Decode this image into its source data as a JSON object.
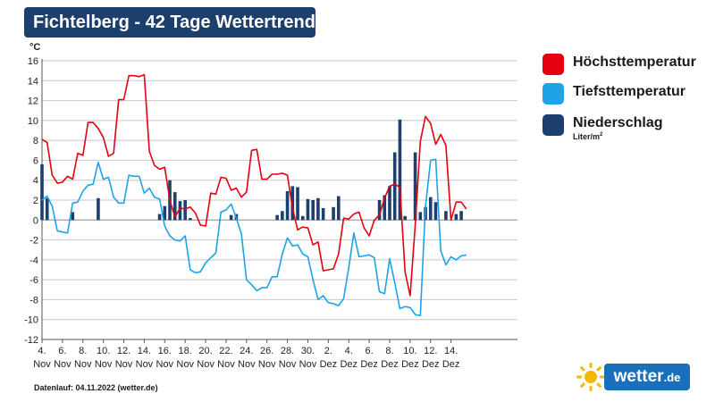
{
  "header": {
    "title": "Fichtelberg - 42 Tage Wettertrend",
    "unit": "°C"
  },
  "legend": {
    "items": [
      {
        "label": "Höchsttemperatur",
        "color": "#e3000f"
      },
      {
        "label": "Tiefsttemperatur",
        "color": "#1ea2e8"
      },
      {
        "label": "Niederschlag",
        "color": "#1d3f6e"
      }
    ],
    "unit_base": "Liter/m",
    "unit_exp": "2"
  },
  "footer": {
    "text": "Datenlauf: 04.11.2022 (wetter.de)"
  },
  "logo": {
    "name": "wetter",
    "suffix": ".de",
    "icon": "sun-icon"
  },
  "chart_data": {
    "type": "line",
    "title": "Fichtelberg - 42 Tage Wettertrend",
    "ylabel": "°C",
    "ylim": [
      -12,
      16
    ],
    "yticks": [
      -12,
      -10,
      -8,
      -6,
      -4,
      -2,
      0,
      2,
      4,
      6,
      8,
      10,
      12,
      14,
      16
    ],
    "grid": true,
    "legend_position": "right",
    "x_domain": [
      0,
      46.5
    ],
    "x_ticks": [
      {
        "x": 0,
        "day": "4.",
        "month": "Nov"
      },
      {
        "x": 2,
        "day": "6.",
        "month": "Nov"
      },
      {
        "x": 4,
        "day": "8.",
        "month": "Nov"
      },
      {
        "x": 6,
        "day": "10.",
        "month": "Nov"
      },
      {
        "x": 8,
        "day": "12.",
        "month": "Nov"
      },
      {
        "x": 10,
        "day": "14.",
        "month": "Nov"
      },
      {
        "x": 12,
        "day": "16.",
        "month": "Nov"
      },
      {
        "x": 14,
        "day": "18.",
        "month": "Nov"
      },
      {
        "x": 16,
        "day": "20.",
        "month": "Nov"
      },
      {
        "x": 18,
        "day": "22.",
        "month": "Nov"
      },
      {
        "x": 20,
        "day": "24.",
        "month": "Nov"
      },
      {
        "x": 22,
        "day": "26.",
        "month": "Nov"
      },
      {
        "x": 24,
        "day": "28.",
        "month": "Nov"
      },
      {
        "x": 26,
        "day": "30.",
        "month": "Nov"
      },
      {
        "x": 28,
        "day": "2.",
        "month": "Dez"
      },
      {
        "x": 30,
        "day": "4.",
        "month": "Dez"
      },
      {
        "x": 32,
        "day": "6.",
        "month": "Dez"
      },
      {
        "x": 34,
        "day": "8.",
        "month": "Dez"
      },
      {
        "x": 36,
        "day": "10.",
        "month": "Dez"
      },
      {
        "x": 38,
        "day": "12.",
        "month": "Dez"
      },
      {
        "x": 40,
        "day": "14.",
        "month": "Dez"
      }
    ],
    "series": [
      {
        "name": "Höchsttemperatur",
        "color": "#e3000f",
        "points": [
          [
            0,
            8.1
          ],
          [
            0.5,
            7.8
          ],
          [
            1,
            4.5
          ],
          [
            1.5,
            3.7
          ],
          [
            2,
            3.8
          ],
          [
            2.5,
            4.4
          ],
          [
            3,
            4.1
          ],
          [
            3.5,
            6.7
          ],
          [
            4,
            6.5
          ],
          [
            4.5,
            9.8
          ],
          [
            5,
            9.8
          ],
          [
            5.5,
            9.2
          ],
          [
            6,
            8.3
          ],
          [
            6.5,
            6.4
          ],
          [
            7,
            6.7
          ],
          [
            7.5,
            12.1
          ],
          [
            8,
            12.1
          ],
          [
            8.5,
            14.5
          ],
          [
            9,
            14.5
          ],
          [
            9.5,
            14.4
          ],
          [
            10,
            14.6
          ],
          [
            10.5,
            6.9
          ],
          [
            11,
            5.5
          ],
          [
            11.5,
            5.1
          ],
          [
            12,
            5.3
          ],
          [
            12.5,
            2.0
          ],
          [
            13,
            0.3
          ],
          [
            13.5,
            1.2
          ],
          [
            14,
            1.1
          ],
          [
            14.5,
            1.3
          ],
          [
            15,
            0.7
          ],
          [
            15.5,
            -0.5
          ],
          [
            16,
            -0.6
          ],
          [
            16.5,
            2.7
          ],
          [
            17,
            2.6
          ],
          [
            17.5,
            4.3
          ],
          [
            18,
            4.2
          ],
          [
            18.5,
            3.0
          ],
          [
            19,
            3.2
          ],
          [
            19.5,
            2.3
          ],
          [
            20,
            2.8
          ],
          [
            20.5,
            7.0
          ],
          [
            21,
            7.1
          ],
          [
            21.5,
            4.1
          ],
          [
            22,
            4.1
          ],
          [
            22.5,
            4.6
          ],
          [
            23,
            4.6
          ],
          [
            23.5,
            4.7
          ],
          [
            24,
            4.5
          ],
          [
            24.5,
            1.2
          ],
          [
            25,
            -1.0
          ],
          [
            25.5,
            -0.7
          ],
          [
            26,
            -0.8
          ],
          [
            26.5,
            -2.5
          ],
          [
            27,
            -2.2
          ],
          [
            27.5,
            -5.1
          ],
          [
            28,
            -5.0
          ],
          [
            28.5,
            -4.9
          ],
          [
            29,
            -3.4
          ],
          [
            29.5,
            0.2
          ],
          [
            30,
            0.1
          ],
          [
            30.5,
            0.6
          ],
          [
            31,
            0.8
          ],
          [
            31.5,
            -0.8
          ],
          [
            32,
            -1.6
          ],
          [
            32.5,
            0.0
          ],
          [
            33,
            0.5
          ],
          [
            33.5,
            2.2
          ],
          [
            34,
            3.4
          ],
          [
            34.5,
            3.6
          ],
          [
            35,
            3.3
          ],
          [
            35.5,
            -5.2
          ],
          [
            36,
            -7.6
          ],
          [
            36.5,
            -0.5
          ],
          [
            37,
            7.9
          ],
          [
            37.5,
            10.4
          ],
          [
            38,
            9.7
          ],
          [
            38.5,
            7.6
          ],
          [
            39,
            8.6
          ],
          [
            39.5,
            7.5
          ],
          [
            40,
            0.0
          ],
          [
            40.5,
            1.8
          ],
          [
            41,
            1.8
          ],
          [
            41.5,
            1.1
          ]
        ]
      },
      {
        "name": "Tiefsttemperatur",
        "color": "#1ea2e8",
        "points": [
          [
            0,
            2.0
          ],
          [
            0.5,
            2.4
          ],
          [
            1,
            1.4
          ],
          [
            1.5,
            -1.1
          ],
          [
            2,
            -1.2
          ],
          [
            2.5,
            -1.3
          ],
          [
            3,
            1.7
          ],
          [
            3.5,
            1.8
          ],
          [
            4,
            2.9
          ],
          [
            4.5,
            3.5
          ],
          [
            5,
            3.6
          ],
          [
            5.5,
            5.8
          ],
          [
            6,
            4.1
          ],
          [
            6.5,
            4.3
          ],
          [
            7,
            2.3
          ],
          [
            7.5,
            1.7
          ],
          [
            8,
            1.7
          ],
          [
            8.5,
            4.5
          ],
          [
            9,
            4.4
          ],
          [
            9.5,
            4.4
          ],
          [
            10,
            2.7
          ],
          [
            10.5,
            3.2
          ],
          [
            11,
            2.3
          ],
          [
            11.5,
            2.1
          ],
          [
            12,
            -0.6
          ],
          [
            12.5,
            -1.6
          ],
          [
            13,
            -2.0
          ],
          [
            13.5,
            -2.1
          ],
          [
            14,
            -1.6
          ],
          [
            14.5,
            -5.0
          ],
          [
            15,
            -5.3
          ],
          [
            15.5,
            -5.2
          ],
          [
            16,
            -4.3
          ],
          [
            16.5,
            -3.8
          ],
          [
            17,
            -3.3
          ],
          [
            17.5,
            0.8
          ],
          [
            18,
            1.0
          ],
          [
            18.5,
            1.6
          ],
          [
            19,
            0.2
          ],
          [
            19.5,
            -1.4
          ],
          [
            20,
            -6.0
          ],
          [
            20.5,
            -6.5
          ],
          [
            21,
            -7.1
          ],
          [
            21.5,
            -6.8
          ],
          [
            22,
            -6.8
          ],
          [
            22.5,
            -5.7
          ],
          [
            23,
            -5.7
          ],
          [
            23.5,
            -3.4
          ],
          [
            24,
            -1.8
          ],
          [
            24.5,
            -2.6
          ],
          [
            25,
            -2.5
          ],
          [
            25.5,
            -3.4
          ],
          [
            26,
            -3.7
          ],
          [
            26.5,
            -6.0
          ],
          [
            27,
            -8.0
          ],
          [
            27.5,
            -7.6
          ],
          [
            28,
            -8.3
          ],
          [
            28.5,
            -8.4
          ],
          [
            29,
            -8.6
          ],
          [
            29.5,
            -7.9
          ],
          [
            30,
            -4.8
          ],
          [
            30.5,
            -1.3
          ],
          [
            31,
            -3.7
          ],
          [
            31.5,
            -3.6
          ],
          [
            32,
            -3.5
          ],
          [
            32.5,
            -3.8
          ],
          [
            33,
            -7.2
          ],
          [
            33.5,
            -7.4
          ],
          [
            34,
            -3.9
          ],
          [
            34.5,
            -6.3
          ],
          [
            35,
            -8.9
          ],
          [
            35.5,
            -8.7
          ],
          [
            36,
            -8.8
          ],
          [
            36.5,
            -9.5
          ],
          [
            37,
            -9.6
          ],
          [
            37.5,
            1.3
          ],
          [
            38,
            6.0
          ],
          [
            38.5,
            6.1
          ],
          [
            39,
            -3.1
          ],
          [
            39.5,
            -4.5
          ],
          [
            40,
            -3.7
          ],
          [
            40.5,
            -4.0
          ],
          [
            41,
            -3.6
          ],
          [
            41.5,
            -3.5
          ]
        ]
      },
      {
        "name": "Niederschlag",
        "color": "#1d3f6e",
        "type": "bar",
        "points": [
          [
            0,
            5.6
          ],
          [
            0.5,
            2.2
          ],
          [
            3,
            0.8
          ],
          [
            5.5,
            2.2
          ],
          [
            11.5,
            0.6
          ],
          [
            12,
            1.4
          ],
          [
            12.5,
            4.0
          ],
          [
            13,
            2.8
          ],
          [
            13.5,
            1.9
          ],
          [
            14,
            2.0
          ],
          [
            14.5,
            0.2
          ],
          [
            18.5,
            0.5
          ],
          [
            19,
            0.6
          ],
          [
            23,
            0.5
          ],
          [
            23.5,
            0.9
          ],
          [
            24,
            2.9
          ],
          [
            24.5,
            3.4
          ],
          [
            25,
            3.3
          ],
          [
            25.5,
            0.4
          ],
          [
            26,
            2.1
          ],
          [
            26.5,
            2.0
          ],
          [
            27,
            2.2
          ],
          [
            27.5,
            1.2
          ],
          [
            28.5,
            1.3
          ],
          [
            29,
            2.4
          ],
          [
            33,
            2.0
          ],
          [
            33.5,
            2.5
          ],
          [
            34,
            3.4
          ],
          [
            34.5,
            6.8
          ],
          [
            35,
            10.1
          ],
          [
            35.5,
            0.4
          ],
          [
            36.5,
            6.8
          ],
          [
            37,
            0.8
          ],
          [
            37.5,
            1.3
          ],
          [
            38,
            2.3
          ],
          [
            38.5,
            1.8
          ],
          [
            39.5,
            0.9
          ],
          [
            40.5,
            0.6
          ],
          [
            41,
            0.9
          ]
        ]
      }
    ]
  }
}
